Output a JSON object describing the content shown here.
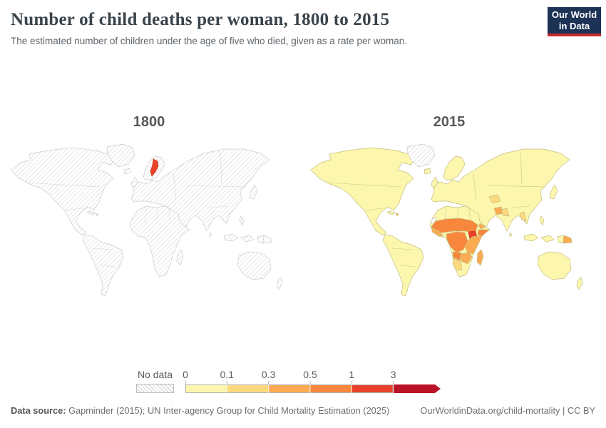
{
  "header": {
    "title": "Number of child deaths per woman, 1800 to 2015",
    "subtitle": "The estimated number of children under the age of five who died, given as a rate per woman.",
    "logo": {
      "line1": "Our World",
      "line2": "in Data",
      "bg_color": "#1d3356",
      "bar_color": "#c5292e"
    }
  },
  "panels": [
    {
      "year": "1800"
    },
    {
      "year": "2015"
    }
  ],
  "legend": {
    "no_data_label": "No data",
    "ticks": [
      "0",
      "0.1",
      "0.3",
      "0.5",
      "1",
      "3"
    ],
    "colors": [
      "#fcf7ad",
      "#fdd97e",
      "#fcab52",
      "#f8863c",
      "#e8432a",
      "#ba1226"
    ]
  },
  "footer": {
    "source_label": "Data source:",
    "source_text": " Gapminder (2015); UN Inter-agency Group for Child Mortality Estimation (2025)",
    "citation": "OurWorldinData.org/child-mortality | CC BY"
  },
  "chart_data": {
    "type": "heatmap",
    "subtype": "choropleth-world-map-pair",
    "title": "Number of child deaths per woman, 1800 to 2015",
    "unit": "child deaths per woman",
    "legend_position": "bottom",
    "bins": [
      {
        "label": "0–0.1",
        "color": "#fcf7ad"
      },
      {
        "label": "0.1–0.3",
        "color": "#fdd97e"
      },
      {
        "label": "0.3–0.5",
        "color": "#fcab52"
      },
      {
        "label": "0.5–1",
        "color": "#f8863c"
      },
      {
        "label": "1–3",
        "color": "#e8432a"
      },
      {
        "label": "3+",
        "color": "#ba1226"
      },
      {
        "label": "No data",
        "color": "hatched"
      }
    ],
    "panels": [
      {
        "year": "1800",
        "default": "no-data",
        "no_data_regions": [],
        "regions": {
          "sweden": 4
        },
        "summary": "Only Sweden has data, shaded red (1–3 child deaths per woman); every other country is hatched (no data)."
      },
      {
        "year": "2015",
        "default": 0,
        "no_data_regions": [
          "greenland",
          "western-sahara"
        ],
        "regions": {
          "madagascar": 2,
          "new-guinea-east": 2,
          "haiti": 2,
          "sahel": 3,
          "west-guinea": 2,
          "central-africa": 3,
          "south-sudan": 4,
          "somalia": 3,
          "east-africa": 2,
          "angola": 3,
          "zambia-mozambique": 2,
          "namibia-botswana": 1,
          "central-asia": 1,
          "afghanistan": 2,
          "pakistan": 1,
          "yemen": 2,
          "myanmar": 1
        },
        "summary": "Most countries pale yellow (0–0.1); Sahel and central Africa orange (0.5–1); South Sudan red (1–3); Greenland and Western Sahara no data."
      }
    ]
  }
}
